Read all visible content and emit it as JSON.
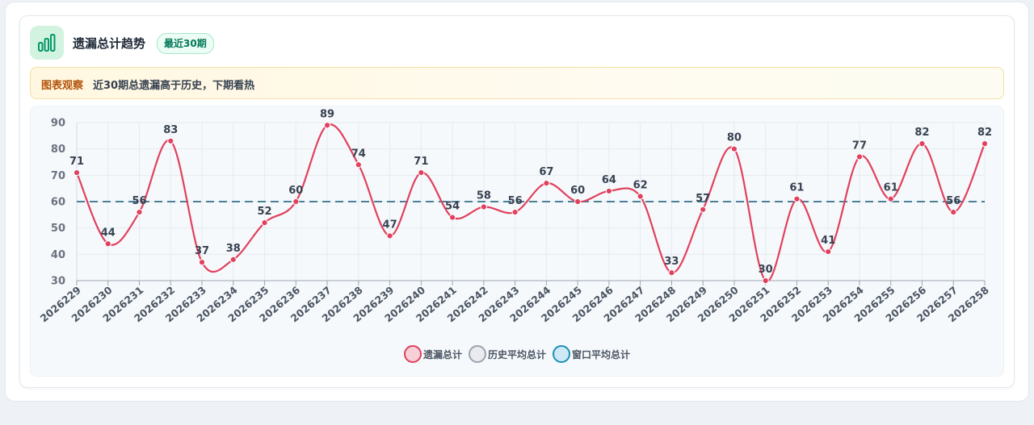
{
  "header": {
    "title": "遗漏总计趋势",
    "badge": "最近30期",
    "icon": "bar-chart-icon"
  },
  "notice": {
    "tag": "图表观察",
    "text": "近30期总遗漏高于历史，下期看热"
  },
  "colors": {
    "series": "#e0415e",
    "series_fill": "#f7d0d8",
    "history": "#9ca3af",
    "history_fill": "#e5e7eb",
    "window": "#1d8fb8",
    "window_fill": "#cde9f5",
    "window_line": "#4a7f96"
  },
  "chart_data": {
    "type": "line",
    "categories": [
      "2026229",
      "2026230",
      "2026231",
      "2026232",
      "2026233",
      "2026234",
      "2026235",
      "2026236",
      "2026237",
      "2026238",
      "2026239",
      "2026240",
      "2026241",
      "2026242",
      "2026243",
      "2026244",
      "2026245",
      "2026246",
      "2026247",
      "2026248",
      "2026249",
      "2026250",
      "2026251",
      "2026252",
      "2026253",
      "2026254",
      "2026255",
      "2026256",
      "2026257",
      "2026258"
    ],
    "series": [
      {
        "name": "遗漏总计",
        "values": [
          71,
          44,
          56,
          83,
          37,
          38,
          52,
          60,
          89,
          74,
          47,
          71,
          54,
          58,
          56,
          67,
          60,
          64,
          62,
          33,
          57,
          80,
          30,
          61,
          41,
          77,
          61,
          82,
          56,
          82
        ]
      }
    ],
    "reference_lines": [
      {
        "name": "窗口平均总计",
        "value": 60,
        "style": "dashed"
      }
    ],
    "legend": [
      "遗漏总计",
      "历史平均总计",
      "窗口平均总计"
    ],
    "legend_position": "bottom",
    "ylim": [
      30,
      90
    ],
    "yticks": [
      30,
      40,
      50,
      60,
      70,
      80,
      90
    ],
    "grid": true
  }
}
